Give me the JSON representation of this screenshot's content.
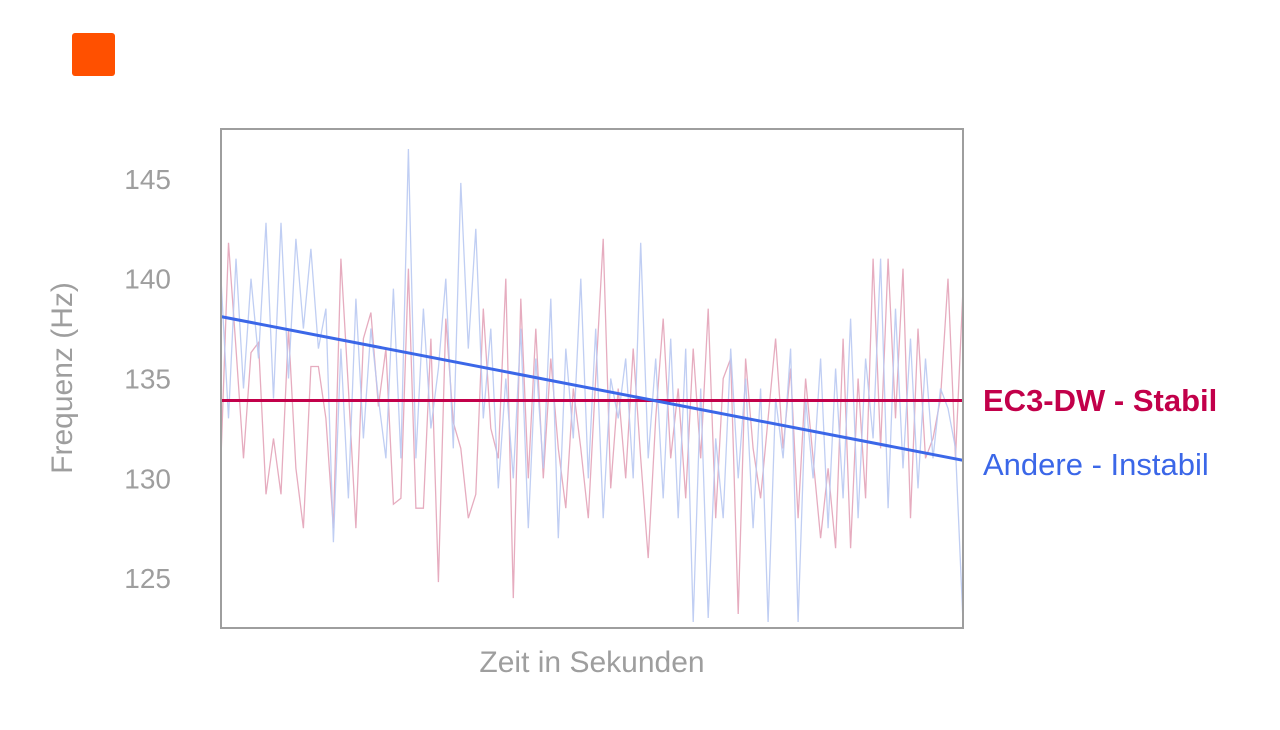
{
  "colors": {
    "brand": "#ff5000",
    "stable": "#c2004a",
    "unstable": "#3b67e8",
    "stable_noise": "#e3a3b8",
    "unstable_noise": "#b9c9f2",
    "frame": "#9e9e9e",
    "text": "#9e9e9e"
  },
  "chart_data": {
    "type": "line",
    "title": "",
    "xlabel": "Zeit in Sekunden",
    "ylabel": "Frequenz (Hz)",
    "ylim": [
      122.5,
      147.5
    ],
    "yticks": [
      125,
      130,
      135,
      140,
      145
    ],
    "xlim": [
      0,
      100
    ],
    "grid": false,
    "legend": "right, inline labels at line ends",
    "series": [
      {
        "name": "EC3-DW - Stabil",
        "kind": "trend",
        "x": [
          0,
          100
        ],
        "y": [
          133.9,
          133.9
        ]
      },
      {
        "name": "Andere - Instabil",
        "kind": "trend",
        "x": [
          0,
          100
        ],
        "y": [
          138.1,
          130.9
        ]
      },
      {
        "kind": "raw",
        "color_key": "stable_noise",
        "y": [
          131.0,
          141.8,
          136.5,
          131.0,
          136.3,
          136.8,
          129.2,
          132.0,
          129.2,
          137.5,
          130.5,
          127.5,
          135.6,
          135.6,
          133.0,
          127.5,
          141.0,
          134.5,
          127.5,
          137.0,
          138.3,
          133.6,
          136.5,
          128.7,
          129.0,
          140.5,
          128.5,
          128.5,
          137.0,
          124.8,
          138.0,
          132.8,
          131.5,
          128.0,
          129.2,
          138.5,
          132.5,
          131.0,
          140.0,
          124.0,
          139.0,
          130.0,
          137.5,
          130.0,
          136.0,
          131.5,
          128.5,
          134.5,
          131.5,
          128.0,
          135.0,
          142.0,
          129.5,
          134.5,
          130.0,
          136.5,
          131.0,
          126.0,
          133.0,
          138.0,
          131.0,
          134.5,
          129.0,
          136.5,
          131.0,
          138.5,
          128.0,
          135.0,
          136.0,
          123.2,
          136.0,
          131.5,
          129.0,
          133.0,
          137.0,
          131.5,
          135.5,
          128.0,
          135.0,
          131.0,
          127.0,
          130.5,
          126.5,
          137.0,
          126.5,
          135.0,
          129.0,
          141.0,
          131.5,
          141.0,
          133.0,
          140.5,
          128.0,
          137.5,
          131.0,
          132.0,
          134.0,
          140.0,
          131.0,
          139.5
        ]
      },
      {
        "kind": "raw",
        "color_key": "unstable_noise",
        "y": [
          140.0,
          133.0,
          141.0,
          134.5,
          140.0,
          136.0,
          142.8,
          134.0,
          142.8,
          135.0,
          142.0,
          137.5,
          141.5,
          136.5,
          138.5,
          126.8,
          136.5,
          129.0,
          139.0,
          132.0,
          137.5,
          134.0,
          131.0,
          139.5,
          131.0,
          146.5,
          131.0,
          138.5,
          132.5,
          135.5,
          140.0,
          131.5,
          144.8,
          136.5,
          142.5,
          133.0,
          137.5,
          129.5,
          135.0,
          130.0,
          137.5,
          127.5,
          136.0,
          130.5,
          139.0,
          127.0,
          136.5,
          132.0,
          140.0,
          130.0,
          137.5,
          128.0,
          135.0,
          133.0,
          136.0,
          130.0,
          141.8,
          131.0,
          136.0,
          129.0,
          137.0,
          128.0,
          136.5,
          122.8,
          134.5,
          123.0,
          132.0,
          128.0,
          136.5,
          130.0,
          135.0,
          127.5,
          134.5,
          122.8,
          134.0,
          131.0,
          136.5,
          122.8,
          134.0,
          130.0,
          136.0,
          127.5,
          135.5,
          129.0,
          138.0,
          128.0,
          136.0,
          132.0,
          141.0,
          128.5,
          138.5,
          130.5,
          137.0,
          129.5,
          136.0,
          131.0,
          134.5,
          133.5,
          131.5,
          122.8
        ]
      }
    ]
  }
}
